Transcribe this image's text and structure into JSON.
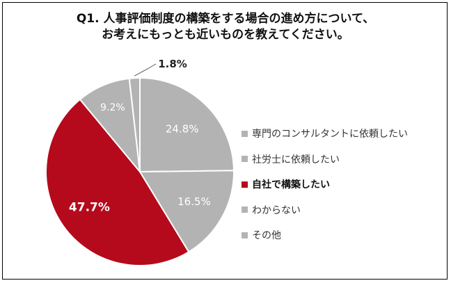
{
  "chart_data": {
    "type": "pie",
    "title": "Q1. 人事評価制度の構築をする場合の進め方について、お考えにもっとも近いものを教えてください。",
    "title_lines": [
      "Q1. 人事評価制度の構築をする場合の進め方について、",
      "お考えにもっとも近いものを教えてください。"
    ],
    "slices": [
      {
        "label": "専門のコンサルタントに依頼したい",
        "value": 24.8,
        "value_label": "24.8%",
        "color": "#b3b3b3",
        "label_color": "#ffffff",
        "highlight": false
      },
      {
        "label": "社労士に依頼したい",
        "value": 16.5,
        "value_label": "16.5%",
        "color": "#b3b3b3",
        "label_color": "#ffffff",
        "highlight": false
      },
      {
        "label": "自社で構築したい",
        "value": 47.7,
        "value_label": "47.7%",
        "color": "#b50a1c",
        "label_color": "#ffffff",
        "highlight": true
      },
      {
        "label": "わからない",
        "value": 9.2,
        "value_label": "9.2%",
        "color": "#b3b3b3",
        "label_color": "#ffffff",
        "highlight": false
      },
      {
        "label": "その他",
        "value": 1.8,
        "value_label": "1.8%",
        "color": "#b3b3b3",
        "label_color": "#222222",
        "highlight": false
      }
    ],
    "start_angle": "12 o'clock",
    "direction": "clockwise",
    "legend_position": "right"
  }
}
